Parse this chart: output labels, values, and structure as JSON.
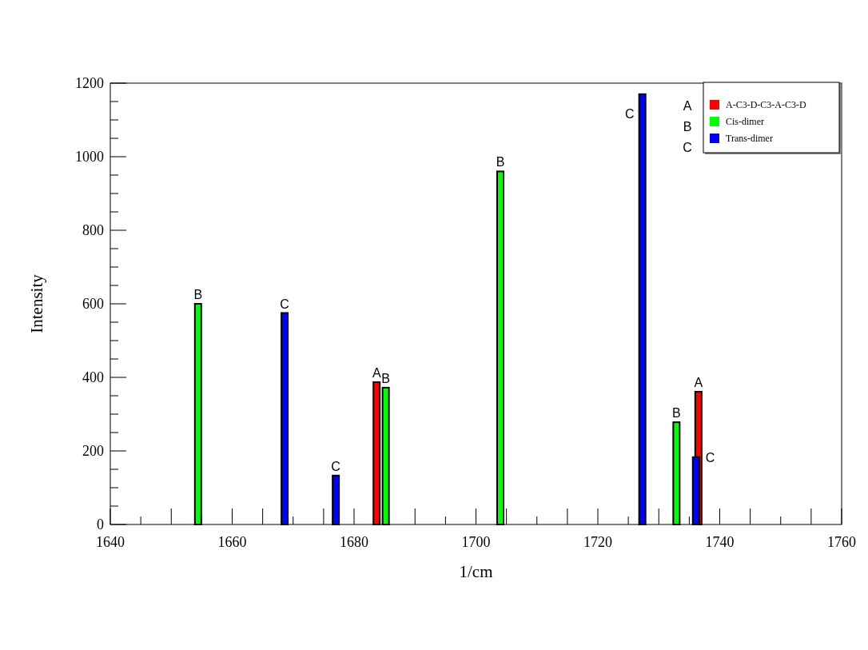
{
  "chart_data": {
    "type": "bar",
    "xlabel": "1/cm",
    "ylabel": "Intensity",
    "xlim": [
      1640,
      1760
    ],
    "xticks": [
      1640,
      1660,
      1680,
      1700,
      1720,
      1740,
      1760
    ],
    "ylim": [
      0,
      1200
    ],
    "yticks": [
      0,
      200,
      400,
      600,
      800,
      1000,
      1200
    ],
    "grid": false,
    "legend": "top right",
    "series": [
      {
        "name": "A-C3-D-C3-A-C3-D",
        "color": "#ff0000",
        "x": [
          1683.7,
          1736.5
        ],
        "values": [
          387,
          361
        ]
      },
      {
        "name": "Cis-dimer",
        "color": "#00ff00",
        "x": [
          1654.4,
          1685.2,
          1704,
          1732.9
        ],
        "values": [
          600,
          372,
          960,
          278
        ]
      },
      {
        "name": "Trans-dimer",
        "color": "#0000ff",
        "x": [
          1668.6,
          1677,
          1727.3,
          1736.1
        ],
        "values": [
          575,
          133,
          1170,
          183
        ]
      }
    ],
    "annotations": [
      {
        "text": "A",
        "x": 1683.7,
        "y": 387
      },
      {
        "text": "A",
        "x": 1736.5,
        "y": 361
      },
      {
        "text": "B",
        "x": 1654.4,
        "y": 600
      },
      {
        "text": "B",
        "x": 1685.2,
        "y": 372
      },
      {
        "text": "B",
        "x": 1704,
        "y": 960
      },
      {
        "text": "B",
        "x": 1732.9,
        "y": 278
      },
      {
        "text": "C",
        "x": 1668.6,
        "y": 575
      },
      {
        "text": "C",
        "x": 1677,
        "y": 133
      },
      {
        "text": "C",
        "x": 1727.3,
        "y": 1170
      },
      {
        "text": "C",
        "x": 1736.1,
        "y": 183
      },
      "A",
      "B",
      "C"
    ]
  }
}
